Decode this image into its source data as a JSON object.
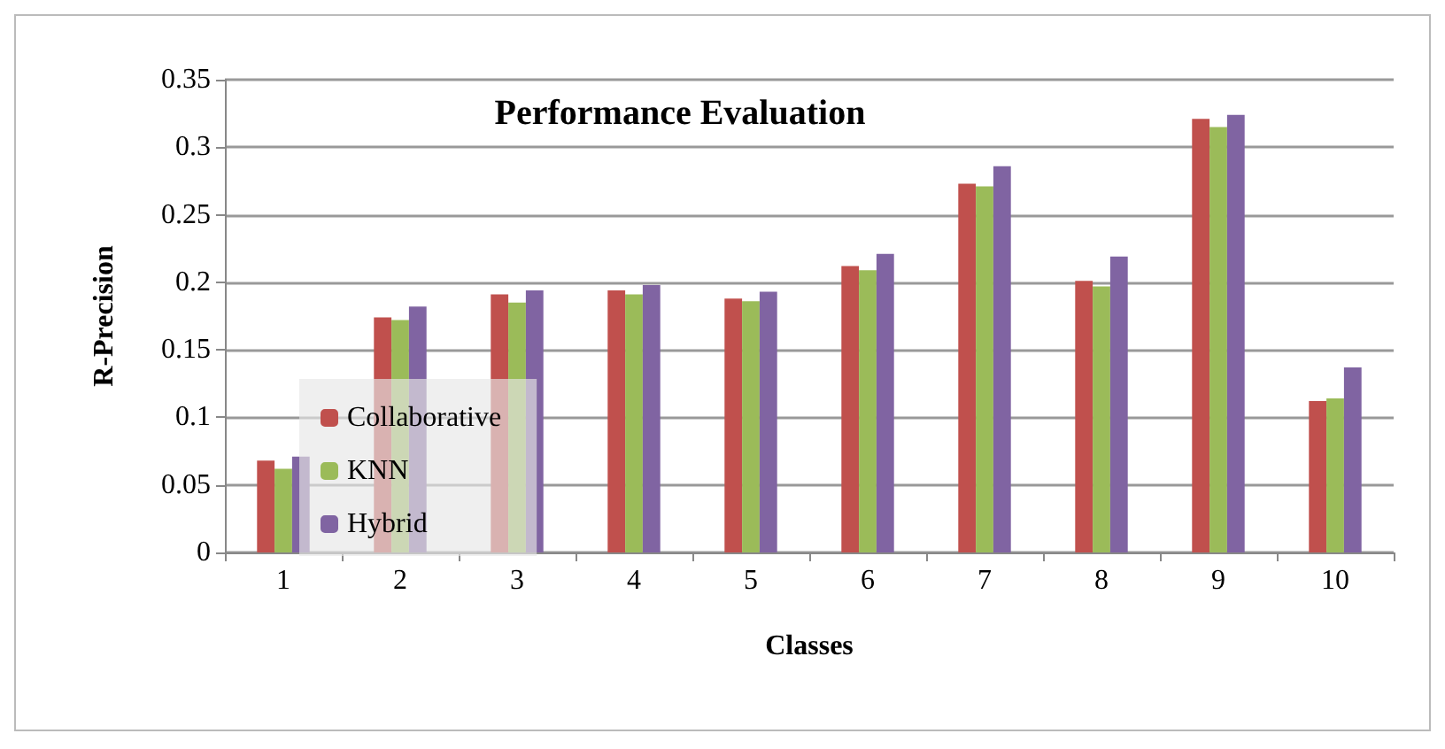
{
  "chart_data": {
    "type": "bar",
    "title": "Performance Evaluation",
    "xlabel": "Classes",
    "ylabel": "R-Precision",
    "categories": [
      "1",
      "2",
      "3",
      "4",
      "5",
      "6",
      "7",
      "8",
      "9",
      "10"
    ],
    "series": [
      {
        "name": "Collaborative",
        "color": "#c0504d",
        "values": [
          0.068,
          0.174,
          0.191,
          0.194,
          0.188,
          0.212,
          0.273,
          0.201,
          0.321,
          0.112
        ]
      },
      {
        "name": "KNN",
        "color": "#9bbb59",
        "values": [
          0.062,
          0.172,
          0.185,
          0.191,
          0.186,
          0.209,
          0.271,
          0.197,
          0.315,
          0.114
        ]
      },
      {
        "name": "Hybrid",
        "color": "#8064a2",
        "values": [
          0.071,
          0.182,
          0.194,
          0.198,
          0.193,
          0.221,
          0.286,
          0.219,
          0.324,
          0.137
        ]
      }
    ],
    "ylim": [
      0,
      0.35
    ],
    "yticks": [
      0,
      0.05,
      0.1,
      0.15,
      0.2,
      0.25,
      0.3,
      0.35
    ],
    "grid": "y",
    "legend": "bottom left"
  }
}
